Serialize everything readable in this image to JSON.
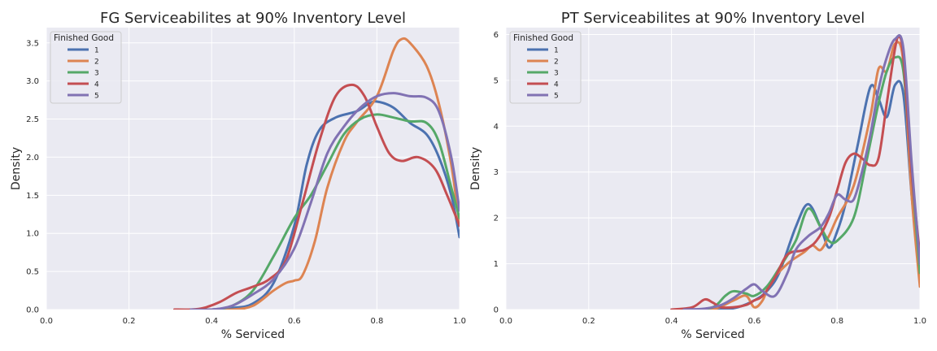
{
  "chart_data": [
    {
      "type": "line",
      "title": "FG Serviceabilites at 90% Inventory Level",
      "xlabel": "% Serviced",
      "ylabel": "Density",
      "xlim": [
        0.0,
        1.0
      ],
      "ylim": [
        0.0,
        3.7
      ],
      "xticks": [
        0.0,
        0.2,
        0.4,
        0.6,
        0.8,
        1.0
      ],
      "xtick_labels": [
        "0.0",
        "0.2",
        "0.4",
        "0.6",
        "0.8",
        "1.0"
      ],
      "yticks": [
        0.0,
        0.5,
        1.0,
        1.5,
        2.0,
        2.5,
        3.0,
        3.5
      ],
      "ytick_labels": [
        "0.0",
        "0.5",
        "1.0",
        "1.5",
        "2.0",
        "2.5",
        "3.0",
        "3.5"
      ],
      "grid": true,
      "legend": {
        "title": "Finished Good",
        "position": "top-left"
      },
      "series": [
        {
          "name": "1",
          "color": "#4c72b0",
          "x": [
            0.35,
            0.4,
            0.45,
            0.5,
            0.55,
            0.6,
            0.63,
            0.66,
            0.7,
            0.75,
            0.78,
            0.8,
            0.84,
            0.88,
            0.92,
            0.95,
            0.98,
            1.0
          ],
          "y": [
            0.0,
            0.0,
            0.02,
            0.08,
            0.35,
            1.1,
            1.9,
            2.35,
            2.52,
            2.6,
            2.7,
            2.73,
            2.65,
            2.45,
            2.3,
            2.0,
            1.5,
            0.95
          ]
        },
        {
          "name": "2",
          "color": "#dd8452",
          "x": [
            0.35,
            0.4,
            0.45,
            0.5,
            0.55,
            0.58,
            0.6,
            0.62,
            0.65,
            0.68,
            0.72,
            0.75,
            0.8,
            0.84,
            0.86,
            0.88,
            0.92,
            0.95,
            0.98,
            1.0
          ],
          "y": [
            0.0,
            0.0,
            0.0,
            0.05,
            0.25,
            0.35,
            0.38,
            0.45,
            0.9,
            1.6,
            2.2,
            2.45,
            2.8,
            3.4,
            3.55,
            3.5,
            3.2,
            2.7,
            1.9,
            1.1
          ]
        },
        {
          "name": "3",
          "color": "#55a868",
          "x": [
            0.35,
            0.4,
            0.45,
            0.5,
            0.55,
            0.6,
            0.64,
            0.68,
            0.72,
            0.76,
            0.8,
            0.84,
            0.88,
            0.92,
            0.95,
            0.98,
            1.0
          ],
          "y": [
            0.0,
            0.0,
            0.05,
            0.25,
            0.7,
            1.2,
            1.5,
            1.9,
            2.3,
            2.5,
            2.56,
            2.52,
            2.47,
            2.45,
            2.2,
            1.6,
            1.2
          ]
        },
        {
          "name": "4",
          "color": "#c44e52",
          "x": [
            0.31,
            0.35,
            0.38,
            0.42,
            0.46,
            0.5,
            0.54,
            0.58,
            0.62,
            0.66,
            0.7,
            0.74,
            0.77,
            0.8,
            0.83,
            0.86,
            0.9,
            0.94,
            0.97,
            1.0
          ],
          "y": [
            0.0,
            0.0,
            0.02,
            0.1,
            0.22,
            0.3,
            0.4,
            0.65,
            1.4,
            2.2,
            2.8,
            2.95,
            2.8,
            2.4,
            2.05,
            1.95,
            2.0,
            1.85,
            1.5,
            1.1
          ]
        },
        {
          "name": "5",
          "color": "#8172b3",
          "x": [
            0.35,
            0.4,
            0.45,
            0.5,
            0.55,
            0.6,
            0.64,
            0.68,
            0.72,
            0.76,
            0.8,
            0.84,
            0.88,
            0.92,
            0.95,
            0.98,
            1.0
          ],
          "y": [
            0.0,
            0.0,
            0.05,
            0.2,
            0.4,
            0.8,
            1.4,
            2.05,
            2.4,
            2.65,
            2.8,
            2.84,
            2.8,
            2.78,
            2.6,
            2.0,
            1.3
          ]
        }
      ]
    },
    {
      "type": "line",
      "title": "PT Serviceabilites at 90% Inventory Level",
      "xlabel": "% Serviced",
      "ylabel": "Density",
      "xlim": [
        0.0,
        1.0
      ],
      "ylim": [
        0.0,
        6.15
      ],
      "xticks": [
        0.0,
        0.2,
        0.4,
        0.6,
        0.8,
        1.0
      ],
      "xtick_labels": [
        "0.0",
        "0.2",
        "0.4",
        "0.6",
        "0.8",
        "1.0"
      ],
      "yticks": [
        0,
        1,
        2,
        3,
        4,
        5,
        6
      ],
      "ytick_labels": [
        "0",
        "1",
        "2",
        "3",
        "4",
        "5",
        "6"
      ],
      "grid": true,
      "legend": {
        "title": "Finished Good",
        "position": "top-left"
      },
      "series": [
        {
          "name": "1",
          "color": "#4c72b0",
          "x": [
            0.45,
            0.52,
            0.56,
            0.6,
            0.63,
            0.66,
            0.7,
            0.73,
            0.76,
            0.78,
            0.8,
            0.82,
            0.85,
            0.88,
            0.9,
            0.92,
            0.94,
            0.96,
            0.98,
            1.0
          ],
          "y": [
            0.0,
            0.0,
            0.05,
            0.2,
            0.4,
            0.8,
            1.8,
            2.3,
            1.8,
            1.35,
            1.7,
            2.3,
            3.6,
            4.85,
            4.6,
            4.2,
            4.9,
            4.7,
            2.5,
            0.7
          ]
        },
        {
          "name": "2",
          "color": "#dd8452",
          "x": [
            0.45,
            0.5,
            0.55,
            0.58,
            0.6,
            0.62,
            0.64,
            0.68,
            0.72,
            0.74,
            0.76,
            0.78,
            0.8,
            0.84,
            0.88,
            0.9,
            0.92,
            0.94,
            0.96,
            0.98,
            1.0
          ],
          "y": [
            0.0,
            0.0,
            0.2,
            0.3,
            0.05,
            0.2,
            0.6,
            1.0,
            1.25,
            1.4,
            1.3,
            1.6,
            2.0,
            2.7,
            4.2,
            5.25,
            5.2,
            5.8,
            5.4,
            2.5,
            0.5
          ]
        },
        {
          "name": "3",
          "color": "#55a868",
          "x": [
            0.45,
            0.5,
            0.53,
            0.55,
            0.58,
            0.6,
            0.63,
            0.66,
            0.7,
            0.73,
            0.76,
            0.78,
            0.8,
            0.84,
            0.87,
            0.9,
            0.92,
            0.94,
            0.96,
            0.98,
            1.0
          ],
          "y": [
            0.0,
            0.05,
            0.3,
            0.4,
            0.35,
            0.3,
            0.5,
            0.9,
            1.5,
            2.2,
            1.8,
            1.5,
            1.5,
            2.0,
            3.2,
            4.5,
            5.2,
            5.5,
            5.2,
            3.0,
            0.8
          ]
        },
        {
          "name": "4",
          "color": "#c44e52",
          "x": [
            0.4,
            0.45,
            0.48,
            0.5,
            0.52,
            0.55,
            0.58,
            0.6,
            0.62,
            0.65,
            0.68,
            0.72,
            0.75,
            0.78,
            0.8,
            0.82,
            0.84,
            0.86,
            0.88,
            0.9,
            0.92,
            0.94,
            0.95,
            0.96,
            0.98,
            1.0
          ],
          "y": [
            0.0,
            0.05,
            0.22,
            0.15,
            0.05,
            0.05,
            0.1,
            0.2,
            0.3,
            0.7,
            1.2,
            1.3,
            1.5,
            2.0,
            2.6,
            3.2,
            3.4,
            3.3,
            3.15,
            3.3,
            4.5,
            5.7,
            5.95,
            5.5,
            3.0,
            1.2
          ]
        },
        {
          "name": "5",
          "color": "#8172b3",
          "x": [
            0.43,
            0.48,
            0.52,
            0.55,
            0.58,
            0.6,
            0.62,
            0.65,
            0.68,
            0.7,
            0.73,
            0.76,
            0.78,
            0.8,
            0.82,
            0.84,
            0.86,
            0.88,
            0.9,
            0.92,
            0.94,
            0.96,
            0.98,
            1.0
          ],
          "y": [
            0.0,
            0.02,
            0.1,
            0.25,
            0.45,
            0.55,
            0.4,
            0.3,
            0.8,
            1.3,
            1.6,
            1.8,
            2.1,
            2.5,
            2.4,
            2.4,
            3.0,
            3.8,
            4.8,
            5.5,
            5.9,
            5.7,
            3.2,
            1.0
          ]
        }
      ]
    }
  ]
}
